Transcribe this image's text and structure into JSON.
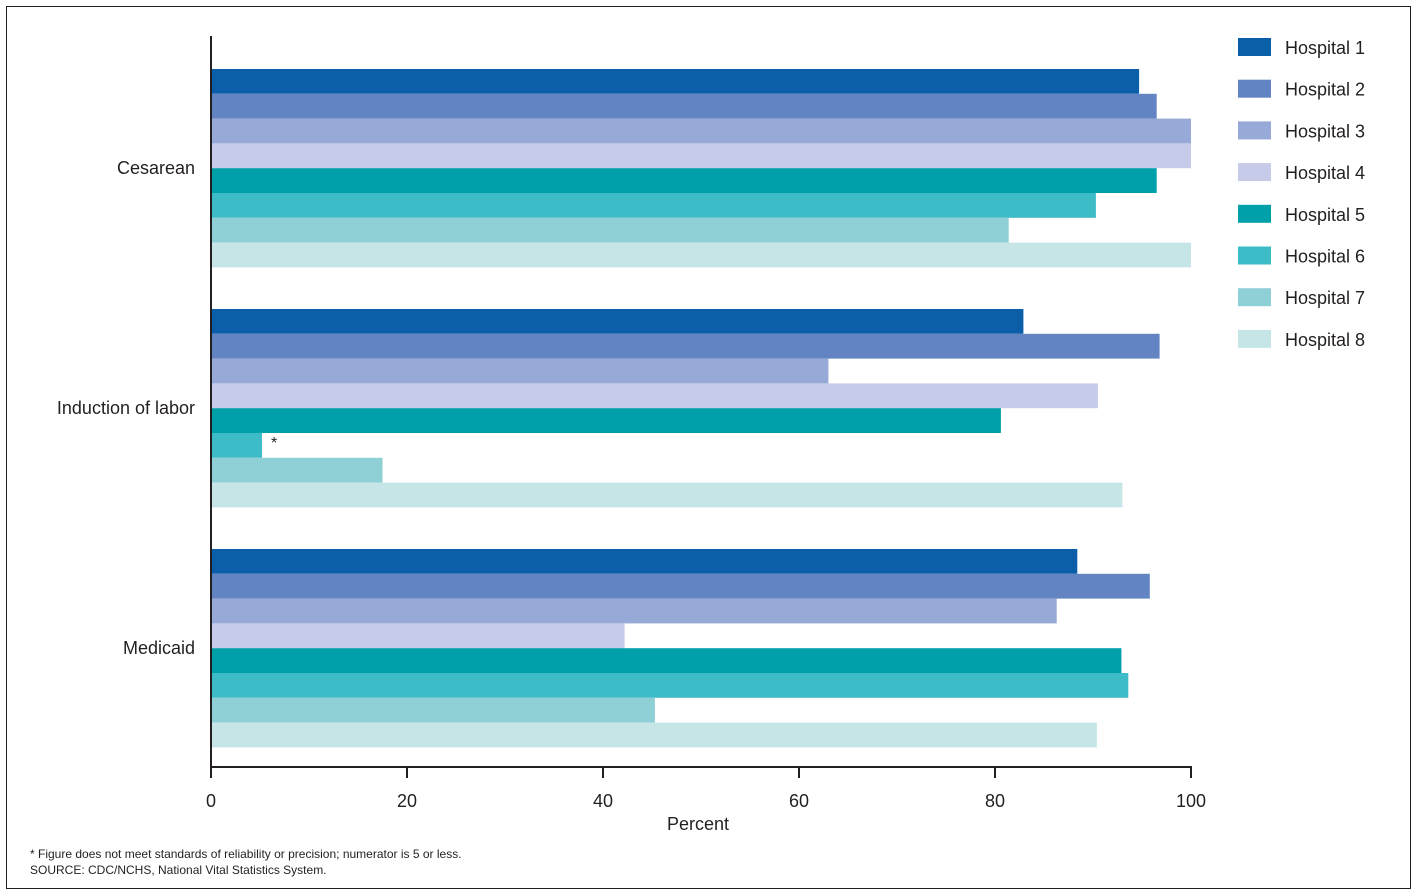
{
  "chart_data": {
    "type": "bar",
    "orientation": "horizontal",
    "categories": [
      "Cesarean",
      "Induction of labor",
      "Medicaid"
    ],
    "series": [
      {
        "name": "Hospital 1",
        "color": "#0b5ea8",
        "values": [
          94.7,
          82.9,
          88.4
        ]
      },
      {
        "name": "Hospital 2",
        "color": "#6384c3",
        "values": [
          96.5,
          96.8,
          95.8
        ]
      },
      {
        "name": "Hospital 3",
        "color": "#97a9d6",
        "values": [
          100,
          63.0,
          86.3
        ]
      },
      {
        "name": "Hospital 4",
        "color": "#c5cbe9",
        "values": [
          100,
          90.5,
          42.2
        ]
      },
      {
        "name": "Hospital 5",
        "color": "#00a0aa",
        "values": [
          96.5,
          80.6,
          92.9
        ]
      },
      {
        "name": "Hospital 6",
        "color": "#3dbbc7",
        "values": [
          90.3,
          5.2,
          93.6
        ]
      },
      {
        "name": "Hospital 7",
        "color": "#8fd0d7",
        "values": [
          81.4,
          17.5,
          45.3
        ]
      },
      {
        "name": "Hospital 8",
        "color": "#c6e5e7",
        "values": [
          100,
          93.0,
          90.4
        ]
      }
    ],
    "annotations": [
      {
        "category": "Induction of labor",
        "series": "Hospital 6",
        "text": "*"
      }
    ],
    "xlabel": "Percent",
    "ylabel": "",
    "xlim": [
      0,
      100
    ],
    "xticks": [
      0,
      20,
      40,
      60,
      80,
      100
    ],
    "grid": false,
    "legend_position": "top-right"
  },
  "footnotes": {
    "asterisk_note": "* Figure does not meet standards of reliability or precision; numerator is 5 or less.",
    "source": "SOURCE: CDC/NCHS, National Vital Statistics System."
  }
}
